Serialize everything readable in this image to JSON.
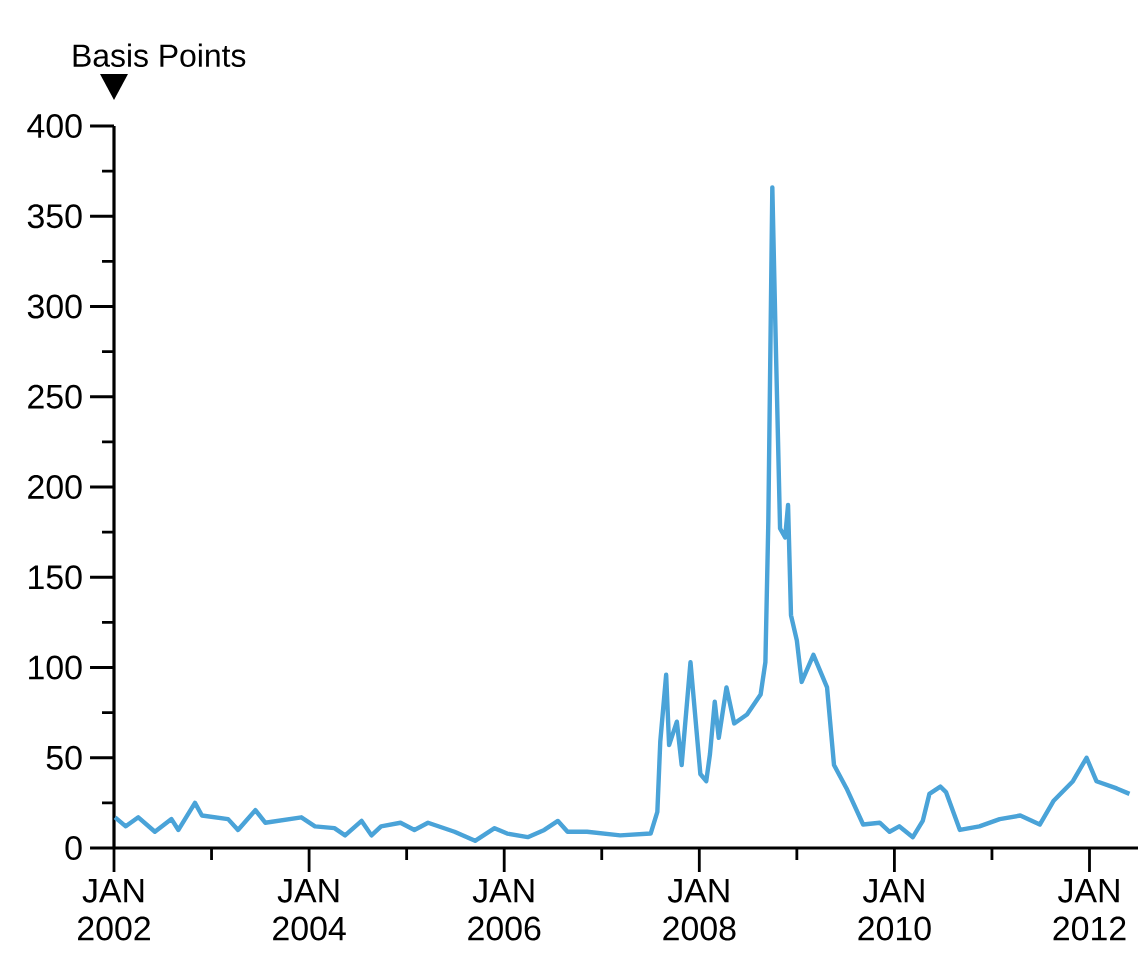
{
  "chart_data": {
    "type": "line",
    "ylabel": "Basis Points",
    "color": "#4aa3d8",
    "x": [
      "2002-01-05",
      "2002-02-14",
      "2002-04-02",
      "2002-06-03",
      "2002-08-04",
      "2002-08-30",
      "2002-10-31",
      "2002-11-26",
      "2003-03-04",
      "2003-04-10",
      "2003-06-14",
      "2003-07-21",
      "2003-12-03",
      "2004-01-23",
      "2004-04-05",
      "2004-05-15",
      "2004-07-16",
      "2004-08-22",
      "2004-09-27",
      "2004-12-09",
      "2005-01-30",
      "2005-03-22",
      "2005-06-29",
      "2005-09-14",
      "2005-11-26",
      "2006-01-12",
      "2006-03-30",
      "2006-05-31",
      "2006-07-21",
      "2006-08-26",
      "2006-11-07",
      "2007-03-11",
      "2007-07-03",
      "2007-07-28",
      "2007-08-08",
      "2007-08-30",
      "2007-09-10",
      "2007-10-09",
      "2007-10-27",
      "2007-11-29",
      "2007-12-21",
      "2008-01-05",
      "2008-01-27",
      "2008-02-10",
      "2008-02-28",
      "2008-03-14",
      "2008-04-12",
      "2008-05-11",
      "2008-06-28",
      "2008-08-18",
      "2008-09-05",
      "2008-09-16",
      "2008-10-01",
      "2008-10-12",
      "2008-10-30",
      "2008-11-18",
      "2008-11-29",
      "2008-12-10",
      "2009-01-01",
      "2009-01-19",
      "2009-03-04",
      "2009-04-24",
      "2009-05-20",
      "2009-07-06",
      "2009-09-06",
      "2009-11-07",
      "2009-12-14",
      "2010-01-19",
      "2010-03-11",
      "2010-04-17",
      "2010-05-12",
      "2010-06-22",
      "2010-07-13",
      "2010-09-03",
      "2010-11-15",
      "2011-01-30",
      "2011-04-17",
      "2011-06-29",
      "2011-08-19",
      "2011-10-31",
      "2011-12-21",
      "2012-01-27",
      "2012-04-12",
      "2012-05-30"
    ],
    "values": [
      17,
      12,
      17,
      9,
      16,
      10,
      25,
      18,
      16,
      10,
      21,
      14,
      17,
      12,
      11,
      7,
      15,
      7,
      12,
      14,
      10,
      14,
      9,
      4,
      11,
      8,
      6,
      10,
      15,
      9,
      9,
      7,
      8,
      20,
      59,
      96,
      57,
      70,
      46,
      103,
      66,
      41,
      37,
      52,
      81,
      61,
      89,
      69,
      74,
      85,
      103,
      181,
      366,
      292,
      177,
      172,
      190,
      129,
      115,
      92,
      107,
      89,
      46,
      33,
      13,
      14,
      9,
      12,
      6,
      15,
      30,
      34,
      31,
      10,
      12,
      16,
      18,
      13,
      26,
      37,
      50,
      37,
      33,
      30
    ],
    "xlim": [
      "2002-01-01",
      "2012-07-01"
    ],
    "xticks": [
      {
        "value": "2002-01-01",
        "label": "JAN 2002"
      },
      {
        "value": "2003-01-01",
        "label": null
      },
      {
        "value": "2004-01-01",
        "label": "JAN 2004"
      },
      {
        "value": "2005-01-01",
        "label": null
      },
      {
        "value": "2006-01-01",
        "label": "JAN 2006"
      },
      {
        "value": "2007-01-01",
        "label": null
      },
      {
        "value": "2008-01-01",
        "label": "JAN 2008"
      },
      {
        "value": "2009-01-01",
        "label": null
      },
      {
        "value": "2010-01-01",
        "label": "JAN 2010"
      },
      {
        "value": "2011-01-01",
        "label": null
      },
      {
        "value": "2012-01-01",
        "label": "JAN 2012"
      }
    ],
    "ylim": [
      0,
      400
    ],
    "yticks": [
      0,
      {
        "value": 25,
        "label": null
      },
      50,
      {
        "value": 75,
        "label": null
      },
      100,
      {
        "value": 125,
        "label": null
      },
      150,
      {
        "value": 175,
        "label": null
      },
      200,
      {
        "value": 225,
        "label": null
      },
      250,
      {
        "value": 275,
        "label": null
      },
      300,
      {
        "value": 325,
        "label": null
      },
      350,
      {
        "value": 375,
        "label": null
      },
      400
    ]
  }
}
